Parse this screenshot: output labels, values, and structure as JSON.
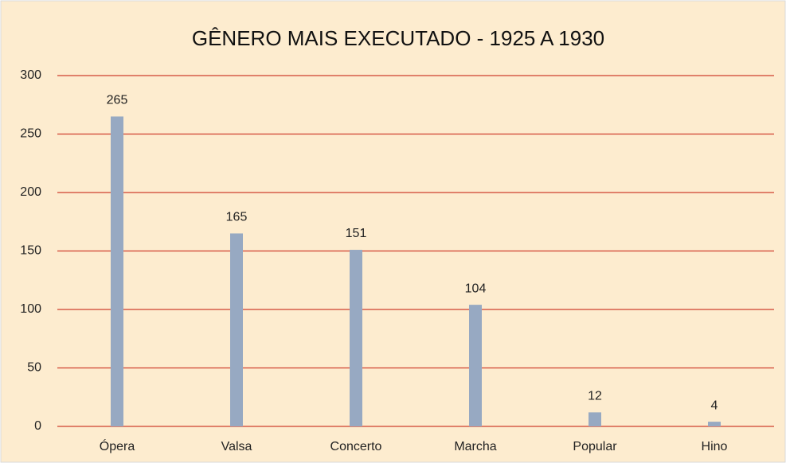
{
  "chart_data": {
    "type": "bar",
    "title": "GÊNERO MAIS EXECUTADO - 1925 A 1930",
    "categories": [
      "Ópera",
      "Valsa",
      "Concerto",
      "Marcha",
      "Popular",
      "Hino"
    ],
    "values": [
      265,
      165,
      151,
      104,
      12,
      4
    ],
    "color": "#97a9c2",
    "ylim": [
      0,
      300
    ],
    "yticks": [
      0,
      50,
      100,
      150,
      200,
      250,
      300
    ],
    "grid": true,
    "grid_color": "#d0402f"
  }
}
